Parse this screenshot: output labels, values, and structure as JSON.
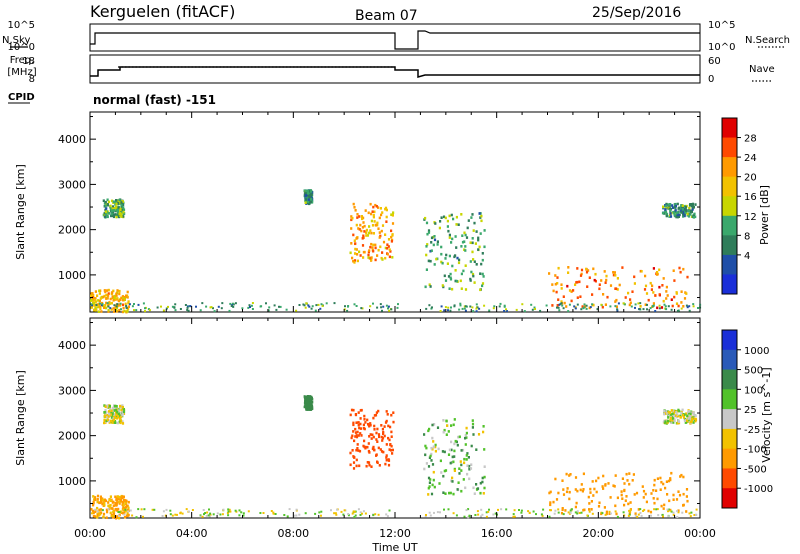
{
  "header": {
    "station": "Kerguelen (fitACF)",
    "beam": "Beam 07",
    "date": "25/Sep/2016"
  },
  "status_panel": {
    "nsky_label": "N.Sky",
    "nsearch_label": "N.Search",
    "freq_label_line1": "Freq.",
    "freq_label_line2": "[MHz]",
    "nave_label": "Nave",
    "cpid_label": "CPID",
    "cpid_value": "normal (fast) -151",
    "nsky_ticks": [
      "10^5",
      "10^0"
    ],
    "nsearch_ticks": [
      "10^5",
      "10^0"
    ],
    "freq_ticks": [
      "18",
      "8"
    ],
    "nave_ticks": [
      "60",
      "0"
    ]
  },
  "axes": {
    "y_label": "Slant Range [km]",
    "y_ticks": [
      "4000",
      "3000",
      "2000",
      "1000"
    ],
    "x_label": "Time UT",
    "x_ticks": [
      "00:00",
      "04:00",
      "08:00",
      "12:00",
      "16:00",
      "20:00",
      "00:00"
    ]
  },
  "colorbars": {
    "power": {
      "title": "Power [dB]",
      "ticks": [
        "28",
        "24",
        "20",
        "16",
        "12",
        "8",
        "4"
      ],
      "colors": [
        "#e00000",
        "#ff4a00",
        "#ff9a00",
        "#f2c200",
        "#c8d600",
        "#3aa86c",
        "#2f7d5a",
        "#1f4fa8",
        "#1a2fd8"
      ]
    },
    "velocity": {
      "title": "Velocity [m s^-1]",
      "ticks": [
        "1000",
        "500",
        "100",
        "25",
        "-25",
        "-100",
        "-500",
        "-1000"
      ],
      "colors": [
        "#1a2fd8",
        "#2a5ab8",
        "#3a8a4a",
        "#52c22a",
        "#c8c8c8",
        "#f2c200",
        "#ff9a00",
        "#ff4a00",
        "#e00000"
      ]
    }
  },
  "chart_data": {
    "type": "heatmap",
    "title": "Kerguelen (fitACF) Beam 07 25/Sep/2016",
    "xlabel": "Time UT",
    "ylabel": "Slant Range [km]",
    "xlim_hours": [
      0,
      24
    ],
    "ylim_km": [
      180,
      4600
    ],
    "data_gap_hours": [
      12.1,
      13.1
    ],
    "status": {
      "nsky_log_level": 4.6,
      "nsearch_log_level": 4.2,
      "freq_mhz_segments": [
        {
          "t0": 0,
          "t1": 0.7,
          "f": 10.5
        },
        {
          "t0": 0.7,
          "t1": 12.1,
          "f": 13.2
        },
        {
          "t0": 13.1,
          "t1": 24,
          "f": 10.5
        }
      ],
      "nave": 13
    },
    "echo_regions": [
      {
        "t0": 0.5,
        "t1": 1.3,
        "r0": 2300,
        "r1": 2700,
        "power": 10,
        "velocity": 0
      },
      {
        "t0": 0.0,
        "t1": 1.5,
        "r0": 200,
        "r1": 700,
        "power": 18,
        "velocity": -150
      },
      {
        "t0": 8.4,
        "t1": 8.7,
        "r0": 2600,
        "r1": 2900,
        "power": 8,
        "velocity": 300
      },
      {
        "t0": 10.2,
        "t1": 11.9,
        "r0": 1300,
        "r1": 2600,
        "power": 20,
        "velocity": -900
      },
      {
        "t0": 13.1,
        "t1": 15.5,
        "r0": 700,
        "r1": 2400,
        "power": 10,
        "velocity": 50
      },
      {
        "t0": 18.0,
        "t1": 23.5,
        "r0": 300,
        "r1": 1200,
        "power": 22,
        "velocity": -400
      },
      {
        "t0": 22.5,
        "t1": 23.8,
        "r0": 2300,
        "r1": 2600,
        "power": 8,
        "velocity": 0
      }
    ]
  }
}
